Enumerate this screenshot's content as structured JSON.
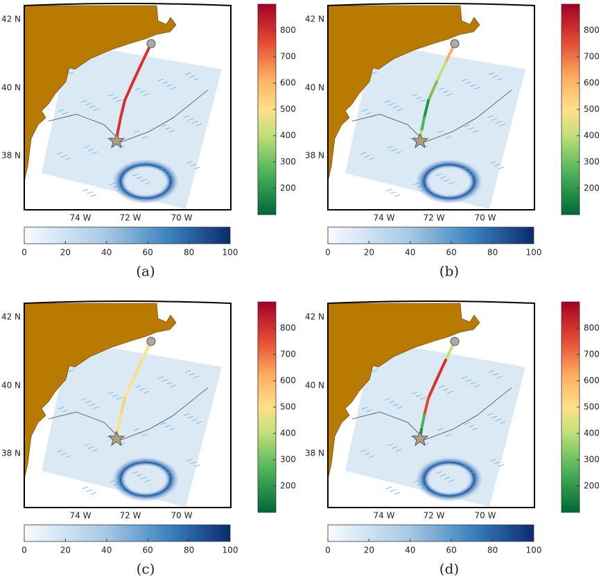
{
  "panels": [
    {
      "label": "(a)"
    },
    {
      "label": "(b)"
    },
    {
      "label": "(c)"
    },
    {
      "label": "(d)"
    }
  ],
  "map": {
    "lat_labels": [
      "42 N",
      "40 N",
      "38 N"
    ],
    "lon_labels": [
      "74 W",
      "72 W",
      "70 W"
    ]
  },
  "speed_colorbar": {
    "lim": [
      100,
      900
    ],
    "ticks": [
      200,
      300,
      400,
      500,
      600,
      700,
      800
    ]
  },
  "depth_colorbar": {
    "lim": [
      0,
      100
    ],
    "ticks": [
      0,
      20,
      40,
      60,
      80,
      100
    ]
  }
}
